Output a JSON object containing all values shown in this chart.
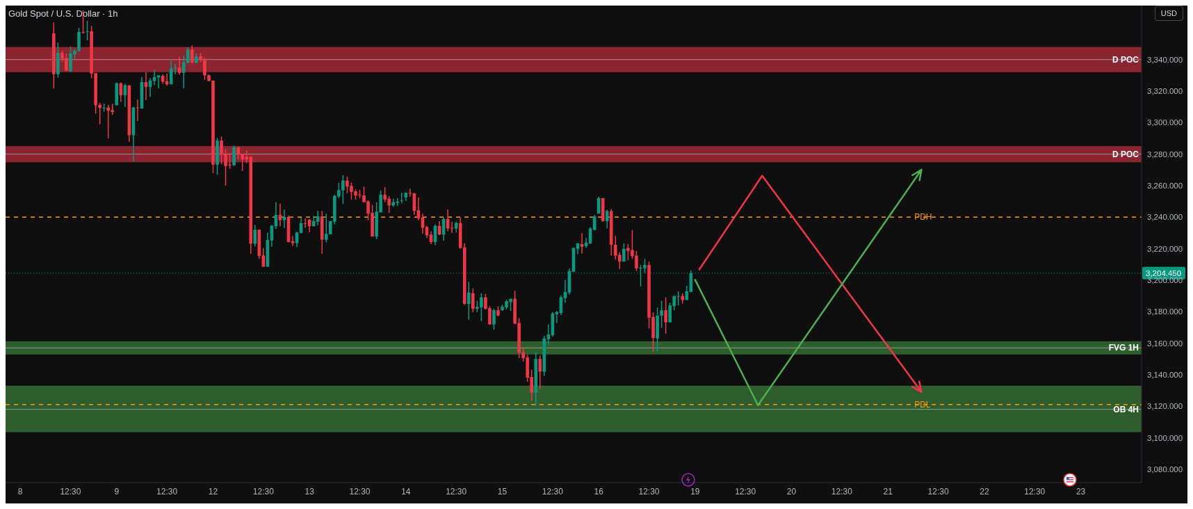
{
  "chart_data": {
    "type": "candlestick",
    "title": "Gold Spot / U.S. Dollar · 1h",
    "annotations": [
      "USD"
    ],
    "categories": [
      null,
      null,
      null,
      "8",
      null,
      null,
      null,
      null,
      null,
      null,
      null,
      null,
      null,
      null,
      null,
      "12:30",
      null,
      null,
      null,
      null,
      null,
      null,
      null,
      null,
      null,
      null,
      "9",
      null,
      null,
      null,
      null,
      null,
      null,
      null,
      null,
      null,
      null,
      null,
      "12:30",
      null,
      null,
      null,
      null,
      null,
      null,
      null,
      null,
      null,
      null,
      "12",
      null,
      null,
      null,
      null,
      null,
      null,
      null,
      null,
      null,
      null,
      null,
      "12:30",
      null,
      null,
      null,
      null,
      null,
      null,
      null,
      null,
      null,
      null,
      "13",
      null,
      null,
      null,
      null,
      null,
      null,
      null,
      null,
      null,
      null,
      null,
      "12:30",
      null,
      null,
      null,
      null,
      null,
      null,
      null,
      null,
      null,
      null,
      "14",
      null,
      null,
      null,
      null,
      null,
      null,
      null,
      null,
      null,
      null,
      null,
      "12:30",
      null,
      null,
      null,
      null,
      null,
      null,
      null,
      null,
      null,
      null,
      "15",
      null,
      null,
      null,
      null,
      null,
      null,
      null,
      null,
      null,
      null,
      null,
      "12:30",
      null,
      null,
      null,
      null,
      null,
      null,
      null,
      null,
      null,
      null,
      "16",
      null,
      null,
      null,
      null,
      null,
      null,
      null,
      null,
      null,
      null,
      null,
      "12:30",
      null,
      null,
      null,
      null,
      null,
      null,
      null,
      null,
      null,
      null,
      "19",
      null,
      null,
      null,
      null,
      null,
      null,
      null,
      null,
      null,
      null,
      null,
      "12:30",
      null,
      null,
      null,
      null,
      null,
      null,
      null,
      null,
      null,
      null,
      "20",
      null,
      null,
      null,
      null,
      null,
      null,
      null,
      null,
      null,
      null,
      null,
      "12:30",
      null,
      null,
      null,
      null,
      null,
      null,
      null,
      null,
      null,
      null,
      "21",
      null,
      null,
      null,
      null,
      null,
      null,
      null,
      null,
      null,
      null,
      null,
      "12:30",
      null,
      null,
      null,
      null,
      null,
      null,
      null,
      null,
      null,
      null,
      "22",
      null,
      null,
      null,
      null,
      null,
      null,
      null,
      null,
      null,
      null,
      null,
      "12:30",
      null,
      null,
      null,
      null,
      null,
      null,
      null,
      null,
      null,
      null,
      "23",
      null,
      null,
      null,
      null,
      null,
      null,
      null,
      null,
      null,
      null,
      null,
      null,
      null,
      null
    ],
    "ylim": [
      3071.5,
      3374.3
    ],
    "yticks": [
      {
        "value": 3080,
        "label": "3,080.000"
      },
      {
        "value": 3100,
        "label": "3,100.000"
      },
      {
        "value": 3120,
        "label": "3,120.000"
      },
      {
        "value": 3140,
        "label": "3,140.000"
      },
      {
        "value": 3160,
        "label": "3,160.000"
      },
      {
        "value": 3180,
        "label": "3,180.000"
      },
      {
        "value": 3200,
        "label": "3,200.000"
      },
      {
        "value": 3220,
        "label": "3,220.000"
      },
      {
        "value": 3240,
        "label": "3,240.000"
      },
      {
        "value": 3260,
        "label": "3,260.000"
      },
      {
        "value": 3280,
        "label": "3,280.000"
      },
      {
        "value": 3300,
        "label": "3,300.000"
      },
      {
        "value": 3320,
        "label": "3,320.000"
      },
      {
        "value": 3340,
        "label": "3,340.000"
      }
    ],
    "bands": [
      {
        "axis": "y",
        "from": 3332,
        "to": 3348,
        "color": "#8b2530"
      },
      {
        "axis": "y",
        "from": 3274.8,
        "to": 3285.1,
        "color": "#8b2530"
      },
      {
        "axis": "y",
        "from": 3152.8,
        "to": 3161.2,
        "color": "#2e5e2e"
      },
      {
        "axis": "y",
        "from": 3103.5,
        "to": 3133,
        "color": "#2e5e2e"
      }
    ],
    "ref_lines": [
      {
        "axis": "y",
        "value": 3340,
        "label": "D POC",
        "color": "#c8c8c8",
        "line_style": "solid"
      },
      {
        "axis": "y",
        "value": 3280,
        "label": "D POC",
        "color": "#c8c8c8",
        "line_style": "solid"
      },
      {
        "axis": "y",
        "value": 3157,
        "label": "FVG 1H",
        "color": "#c8c8c8",
        "line_style": "solid"
      },
      {
        "axis": "y",
        "value": 3118,
        "label": "OB 4H",
        "color": "#c8c8c8",
        "line_style": "solid"
      },
      {
        "axis": "y",
        "value": 3240,
        "label": "PDH",
        "color": "#ff9800",
        "line_style": "dashed"
      },
      {
        "axis": "y",
        "value": 3121,
        "label": "PDL",
        "color": "#ff9800",
        "line_style": "dashed"
      },
      {
        "axis": "y",
        "value": 3204.45,
        "label": "3,204.450",
        "color": "#089981",
        "line_style": "dotted"
      }
    ],
    "series": [
      {
        "ohlc": [
          null,
          null,
          null,
          null,
          null,
          null,
          null,
          null,
          null,
          null,
          null,
          [
            3356.7,
            3363.6,
            3321.7,
            3330.7
          ],
          [
            3330.7,
            3350.7,
            3328.6,
            3344.3
          ],
          [
            3344.3,
            3345.7,
            3338.6,
            3340.6
          ],
          [
            3340.9,
            3344.0,
            3332.6,
            3332.9
          ],
          [
            3332.7,
            3348.2,
            3331.9,
            3343.9
          ],
          [
            3343.4,
            3346.7,
            3340.6,
            3345.6
          ],
          [
            3345.6,
            3360.2,
            3344.9,
            3357.6
          ],
          [
            3357.5,
            3371.3,
            3356.4,
            3357.3
          ],
          [
            3357.6,
            3364.6,
            3352.2,
            3357.9
          ],
          [
            3358.0,
            3361.4,
            3328.2,
            3331.2
          ],
          [
            3331.4,
            3331.4,
            3305.7,
            3311.0
          ],
          [
            3311.3,
            3312.6,
            3298.9,
            3309.3
          ],
          [
            3309.4,
            3312.0,
            3306.9,
            3309.5
          ],
          [
            3309.6,
            3311.3,
            3290.0,
            3307.6
          ],
          [
            3307.9,
            3312.0,
            3304.9,
            3306.7
          ],
          [
            3311.0,
            3325.4,
            3311.0,
            3325.0
          ],
          [
            3325.0,
            3325.4,
            3313.2,
            3317.4
          ],
          [
            3317.4,
            3324.6,
            3310.0,
            3323.7
          ],
          [
            3323.7,
            3323.7,
            3287.9,
            3292.0
          ],
          [
            3292.0,
            3310.0,
            3275.7,
            3309.6
          ],
          [
            3309.6,
            3314.6,
            3301.0,
            3309.3
          ],
          [
            3308.9,
            3328.9,
            3308.9,
            3325.7
          ],
          [
            3325.7,
            3331.9,
            3314.3,
            3322.6
          ],
          [
            3322.6,
            3328.3,
            3316.4,
            3326.7
          ],
          [
            3326.4,
            3333.6,
            3323.9,
            3328.9
          ],
          [
            3328.6,
            3330.0,
            3321.7,
            3330.0
          ],
          [
            3329.7,
            3330.6,
            3324.6,
            3326.0
          ],
          [
            3326.3,
            3331.0,
            3323.4,
            3324.3
          ],
          [
            3324.3,
            3339.6,
            3324.3,
            3334.4
          ],
          [
            3334.4,
            3337.2,
            3330.7,
            3334.9
          ],
          [
            3334.9,
            3341.7,
            3330.4,
            3331.6
          ],
          [
            3331.6,
            3342.6,
            3321.7,
            3338.3
          ],
          [
            3338.0,
            3347.7,
            3337.7,
            3346.4
          ],
          [
            3346.4,
            3349.0,
            3337.7,
            3338.0
          ],
          [
            3338.0,
            3344.0,
            3337.9,
            3342.0
          ],
          [
            3342.0,
            3344.3,
            3338.6,
            3340.0
          ],
          [
            3340.0,
            3341.2,
            3327.2,
            3330.0
          ],
          [
            3330.0,
            3330.6,
            3326.4,
            3326.4
          ],
          [
            3326.7,
            3326.7,
            3267.9,
            3273.3
          ],
          [
            3273.3,
            3290.3,
            3266.9,
            3288.6
          ],
          [
            3288.6,
            3291.2,
            3273.6,
            3280.0
          ],
          [
            3280.0,
            3283.4,
            3260.0,
            3272.4
          ],
          [
            3273.3,
            3280.7,
            3270.7,
            3272.9
          ],
          [
            3272.9,
            3285.4,
            3272.6,
            3284.3
          ],
          [
            3284.3,
            3284.6,
            3276.7,
            3280.0
          ],
          [
            3280.0,
            3280.3,
            3269.3,
            3276.7
          ],
          [
            3278.3,
            3282.4,
            3274.3,
            3276.6
          ],
          [
            3278.3,
            3278.9,
            3216.7,
            3223.2
          ],
          [
            3223.1,
            3235.0,
            3221.4,
            3232.0
          ],
          [
            3232.0,
            3232.0,
            3213.5,
            3215.4
          ],
          [
            3215.7,
            3220.4,
            3208.5,
            3208.5
          ],
          [
            3208.5,
            3230.2,
            3208.5,
            3225.5
          ],
          [
            3225.2,
            3235.0,
            3221.4,
            3234.5
          ],
          [
            3234.2,
            3249.5,
            3232.5,
            3241.4
          ],
          [
            3241.4,
            3248.5,
            3234.2,
            3238.1
          ],
          [
            3238.1,
            3244.8,
            3233.2,
            3240.1
          ],
          [
            3240.1,
            3241.0,
            3224.0,
            3224.2
          ],
          [
            3224.7,
            3228.1,
            3221.7,
            3223.5
          ],
          [
            3223.5,
            3230.7,
            3221.0,
            3230.2
          ],
          [
            3230.0,
            3239.7,
            3229.7,
            3236.2
          ],
          [
            3236.2,
            3239.2,
            3233.2,
            3236.0
          ],
          [
            3238.4,
            3238.8,
            3230.4,
            3234.2
          ],
          [
            3234.2,
            3240.9,
            3234.2,
            3237.5
          ],
          [
            3237.1,
            3244.0,
            3234.7,
            3240.5
          ],
          [
            3240.5,
            3244.0,
            3216.7,
            3225.7
          ],
          [
            3225.7,
            3242.2,
            3224.0,
            3229.4
          ],
          [
            3229.1,
            3237.5,
            3229.1,
            3237.5
          ],
          [
            3237.1,
            3254.2,
            3235.4,
            3253.4
          ],
          [
            3253.1,
            3261.7,
            3252.1,
            3257.2
          ],
          [
            3257.0,
            3266.7,
            3248.3,
            3263.2
          ],
          [
            3263.2,
            3265.8,
            3255.2,
            3259.4
          ],
          [
            3259.8,
            3262.0,
            3251.2,
            3256.0
          ],
          [
            3256.4,
            3257.7,
            3251.2,
            3253.8
          ],
          [
            3254.3,
            3257.2,
            3252.0,
            3254.0
          ],
          [
            3253.8,
            3259.4,
            3249.5,
            3249.5
          ],
          [
            3250.0,
            3250.8,
            3238.0,
            3242.2
          ],
          [
            3242.7,
            3247.8,
            3227.7,
            3227.7
          ],
          [
            3227.7,
            3249.5,
            3226.0,
            3243.5
          ],
          [
            3243.1,
            3256.8,
            3242.7,
            3254.2
          ],
          [
            3254.2,
            3259.0,
            3249.5,
            3251.2
          ],
          [
            3251.7,
            3253.4,
            3242.7,
            3247.4
          ],
          [
            3247.4,
            3251.7,
            3246.5,
            3249.5
          ],
          [
            3249.1,
            3252.1,
            3247.1,
            3249.9
          ],
          [
            3250.4,
            3255.5,
            3248.7,
            3250.8
          ],
          [
            3252.5,
            3255.5,
            3250.4,
            3255.5
          ],
          [
            3255.4,
            3258.1,
            3253.0,
            3255.2
          ],
          [
            3255.1,
            3255.5,
            3241.4,
            3244.0
          ],
          [
            3244.4,
            3252.5,
            3238.0,
            3239.2
          ],
          [
            3239.7,
            3242.2,
            3229.4,
            3233.2
          ],
          [
            3233.7,
            3234.5,
            3226.8,
            3228.5
          ],
          [
            3228.9,
            3231.1,
            3222.9,
            3224.2
          ],
          [
            3224.2,
            3235.4,
            3222.1,
            3234.5
          ],
          [
            3234.5,
            3237.5,
            3228.5,
            3228.9
          ],
          [
            3228.9,
            3239.7,
            3225.1,
            3238.8
          ],
          [
            3238.8,
            3244.8,
            3231.1,
            3232.8
          ],
          [
            3233.2,
            3237.1,
            3229.8,
            3233.0
          ],
          [
            3232.8,
            3237.1,
            3230.2,
            3236.2
          ],
          [
            3236.2,
            3239.7,
            3219.9,
            3220.4
          ],
          [
            3220.8,
            3223.4,
            3184.5,
            3184.9
          ],
          [
            3184.9,
            3199.0,
            3174.9,
            3192.1
          ],
          [
            3191.7,
            3194.7,
            3179.7,
            3181.8
          ],
          [
            3181.8,
            3186.9,
            3179.7,
            3183.1
          ],
          [
            3182.7,
            3191.7,
            3174.1,
            3189.1
          ],
          [
            3189.1,
            3191.2,
            3181.4,
            3181.8
          ],
          [
            3182.2,
            3183.5,
            3171.9,
            3171.9
          ],
          [
            3171.9,
            3181.8,
            3168.5,
            3180.9
          ],
          [
            3180.9,
            3183.5,
            3177.1,
            3177.5
          ],
          [
            3180.9,
            3184.4,
            3180.5,
            3183.1
          ],
          [
            3182.7,
            3187.7,
            3181.4,
            3186.6
          ],
          [
            3186.1,
            3188.2,
            3180.5,
            3188.2
          ],
          [
            3188.2,
            3193.3,
            3171.9,
            3172.4
          ],
          [
            3172.8,
            3175.8,
            3150.5,
            3153.9
          ],
          [
            3154.3,
            3157.3,
            3148.4,
            3150.5
          ],
          [
            3150.9,
            3152.6,
            3135.5,
            3138.1
          ],
          [
            3138.5,
            3143.2,
            3123.4,
            3128.6
          ],
          [
            3128.6,
            3154.3,
            3120.4,
            3150.0
          ],
          [
            3150.0,
            3152.2,
            3130.8,
            3141.9
          ],
          [
            3141.9,
            3164.6,
            3139.3,
            3162.9
          ],
          [
            3162.5,
            3171.9,
            3159.5,
            3165.5
          ],
          [
            3165.1,
            3179.7,
            3164.2,
            3178.8
          ],
          [
            3178.4,
            3180.5,
            3172.8,
            3179.6
          ],
          [
            3179.2,
            3190.3,
            3177.9,
            3189.1
          ],
          [
            3188.6,
            3200.2,
            3185.6,
            3192.5
          ],
          [
            3192.1,
            3207.5,
            3190.8,
            3205.8
          ],
          [
            3205.4,
            3220.8,
            3205.4,
            3220.4
          ],
          [
            3219.9,
            3223.4,
            3216.5,
            3223.4
          ],
          [
            3222.9,
            3229.8,
            3216.9,
            3221.2
          ],
          [
            3221.6,
            3226.8,
            3220.4,
            3223.8
          ],
          [
            3223.4,
            3233.6,
            3222.9,
            3232.8
          ],
          [
            3231.9,
            3241.4,
            3231.5,
            3240.5
          ],
          [
            3242.2,
            3252.9,
            3242.2,
            3252.1
          ],
          [
            3252.1,
            3252.1,
            3237.1,
            3237.5
          ],
          [
            3237.5,
            3244.8,
            3232.8,
            3243.9
          ],
          [
            3243.9,
            3245.2,
            3215.6,
            3222.5
          ],
          [
            3222.5,
            3228.1,
            3213.1,
            3215.6
          ],
          [
            3216.1,
            3217.8,
            3207.1,
            3211.8
          ],
          [
            3211.8,
            3223.3,
            3211.8,
            3219.9
          ],
          [
            3220.4,
            3222.9,
            3212.6,
            3218.6
          ],
          [
            3219.1,
            3231.9,
            3213.5,
            3215.2
          ],
          [
            3215.6,
            3218.6,
            3205.8,
            3207.5
          ],
          [
            3207.7,
            3209.6,
            3195.9,
            3207.9
          ],
          [
            3207.5,
            3213.5,
            3204.5,
            3209.6
          ],
          [
            3209.6,
            3211.8,
            3169.3,
            3176.2
          ],
          [
            3176.6,
            3179.6,
            3154.3,
            3163.3
          ],
          [
            3162.9,
            3182.6,
            3154.7,
            3177.5
          ],
          [
            3177.5,
            3186.9,
            3169.8,
            3180.9
          ],
          [
            3180.9,
            3189.1,
            3165.9,
            3173.2
          ],
          [
            3173.2,
            3185.6,
            3173.2,
            3183.9
          ],
          [
            3183.5,
            3190.3,
            3180.9,
            3189.9
          ],
          [
            3189.6,
            3192.9,
            3183.9,
            3189.9
          ],
          [
            3189.9,
            3191.6,
            3185.2,
            3187.4
          ],
          [
            3187.4,
            3196.4,
            3187.4,
            3192.9
          ],
          [
            3192.5,
            3206.2,
            3192.5,
            3204.45
          ],
          null,
          null,
          null,
          null,
          null,
          null,
          null,
          null,
          null,
          null,
          null,
          null,
          null,
          null,
          null,
          null,
          null,
          null,
          null,
          null,
          null,
          null,
          null,
          null,
          null,
          null,
          null,
          null,
          null,
          null,
          null,
          null,
          null,
          null,
          null,
          null,
          null,
          null,
          null,
          null,
          null,
          null,
          null,
          null,
          null,
          null,
          null,
          null,
          null,
          null,
          null,
          null,
          null,
          null,
          null,
          null,
          null,
          null,
          null,
          null,
          null,
          null,
          null,
          null,
          null,
          null,
          null,
          null,
          null,
          null,
          null,
          null,
          null,
          null,
          null,
          null,
          null,
          null,
          null,
          null,
          null,
          null,
          null,
          null,
          null,
          null,
          null,
          null,
          null,
          null,
          null,
          null,
          null,
          null,
          null,
          null,
          null,
          null,
          null,
          null,
          null,
          null,
          null,
          null,
          null,
          null,
          null
        ],
        "colors": [
          null,
          null,
          null,
          null,
          null,
          null,
          null,
          null,
          null,
          null,
          null,
          "#f23645",
          "#089981",
          "#f23645",
          "#f23645",
          "#089981",
          "#089981",
          "#089981",
          "#f23645",
          "#089981",
          "#f23645",
          "#f23645",
          "#f23645",
          "#089981",
          "#f23645",
          "#f23645",
          "#089981",
          "#f23645",
          "#089981",
          "#f23645",
          "#089981",
          "#f23645",
          "#089981",
          "#f23645",
          "#089981",
          "#089981",
          "#089981",
          "#f23645",
          "#f23645",
          "#089981",
          "#089981",
          "#f23645",
          "#089981",
          "#089981",
          "#f23645",
          "#089981",
          "#f23645",
          "#f23645",
          "#f23645",
          "#f23645",
          "#089981",
          "#f23645",
          "#f23645",
          "#f23645",
          "#089981",
          "#f23645",
          "#f23645",
          "#f23645",
          "#f23645",
          "#089981",
          "#f23645",
          "#f23645",
          "#089981",
          "#089981",
          "#089981",
          "#f23645",
          "#089981",
          "#f23645",
          "#f23645",
          "#089981",
          "#089981",
          "#f23645",
          "#f23645",
          "#089981",
          "#089981",
          "#f23645",
          "#089981",
          "#089981",
          "#089981",
          "#089981",
          "#089981",
          "#f23645",
          "#f23645",
          "#f23645",
          "#f23645",
          "#f23645",
          "#f23645",
          "#f23645",
          "#089981",
          "#089981",
          "#f23645",
          "#f23645",
          "#089981",
          "#089981",
          "#089981",
          "#089981",
          "#f23645",
          "#f23645",
          "#f23645",
          "#f23645",
          "#f23645",
          "#f23645",
          "#089981",
          "#f23645",
          "#089981",
          "#f23645",
          "#f23645",
          "#089981",
          "#f23645",
          "#f23645",
          "#089981",
          "#f23645",
          "#089981",
          "#089981",
          "#f23645",
          "#f23645",
          "#089981",
          "#f23645",
          "#089981",
          "#089981",
          "#089981",
          "#f23645",
          "#f23645",
          "#f23645",
          "#f23645",
          "#f23645",
          "#089981",
          "#f23645",
          "#089981",
          "#089981",
          "#089981",
          "#089981",
          "#089981",
          "#089981",
          "#089981",
          "#089981",
          "#089981",
          "#f23645",
          "#089981",
          "#089981",
          "#089981",
          "#089981",
          "#f23645",
          "#089981",
          "#f23645",
          "#f23645",
          "#f23645",
          "#089981",
          "#f23645",
          "#f23645",
          "#f23645",
          "#089981",
          "#089981",
          "#f23645",
          "#f23645",
          "#089981",
          "#089981",
          "#f23645",
          "#089981",
          "#089981",
          "#089981",
          "#f23645",
          "#089981",
          "#089981",
          null,
          null,
          null,
          null,
          null,
          null,
          null,
          null,
          null,
          null,
          null,
          null,
          null,
          null,
          null,
          null,
          null,
          null,
          null,
          null,
          null,
          null,
          null,
          null,
          null,
          null,
          null,
          null,
          null,
          null,
          null,
          null,
          null,
          null,
          null,
          null,
          null,
          null,
          null,
          null,
          null,
          null,
          null,
          null,
          null,
          null,
          null,
          null,
          null,
          null,
          null,
          null,
          null,
          null,
          null,
          null,
          null,
          null,
          null,
          null,
          null,
          null,
          null,
          null,
          null,
          null,
          null,
          null,
          null,
          null,
          null,
          null,
          null,
          null,
          null,
          null,
          null,
          null,
          null,
          null,
          null,
          null,
          null,
          null,
          null,
          null,
          null,
          null,
          null,
          null,
          null,
          null,
          null,
          null,
          null,
          null,
          null,
          null,
          null,
          null,
          null,
          null,
          null,
          null,
          null,
          null,
          null
        ]
      }
    ]
  }
}
